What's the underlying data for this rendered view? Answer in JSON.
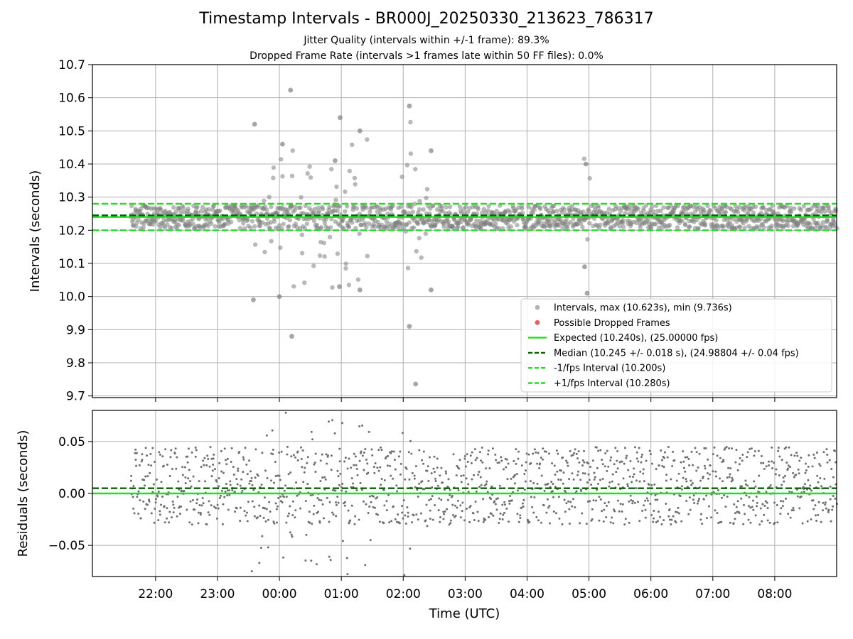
{
  "chart_data": [
    {
      "type": "scatter",
      "title": "Timestamp Intervals - BR000J_20250330_213623_786317",
      "subtitle_lines": [
        "Jitter Quality (intervals within +/-1 frame): 89.3%",
        "Dropped Frame Rate (intervals >1 frames late within 50 FF files): 0.0%"
      ],
      "xlabel": "",
      "ylabel": "Intervals (seconds)",
      "x_axis": "time (UTC), hours since midnight on 30 March; values below 0 are before midnight",
      "xlim": [
        -3.02,
        9.0
      ],
      "ylim": [
        9.695,
        10.7
      ],
      "grid": true,
      "x_tick_labels": [
        "22:00",
        "23:00",
        "00:00",
        "01:00",
        "02:00",
        "03:00",
        "04:00",
        "05:00",
        "06:00",
        "07:00",
        "08:00"
      ],
      "x_tick_values": [
        -2,
        -1,
        0,
        1,
        2,
        3,
        4,
        5,
        6,
        7,
        8
      ],
      "y_ticks": [
        9.7,
        9.8,
        9.9,
        10.0,
        10.1,
        10.2,
        10.3,
        10.4,
        10.5,
        10.6,
        10.7
      ],
      "y_tick_labels": [
        "9.7",
        "9.8",
        "9.9",
        "10.0",
        "10.1",
        "10.2",
        "10.3",
        "10.4",
        "10.5",
        "10.6",
        "10.7"
      ],
      "data_start_hour": -2.4,
      "data_end_hour": 9.0,
      "interval_band": [
        10.2,
        10.28
      ],
      "outlier_windows": [
        [
          -0.5,
          1.5
        ],
        [
          1.95,
          2.5
        ],
        [
          4.9,
          5.05
        ]
      ],
      "series": [
        {
          "name": "Intervals, max (10.623s), min (9.736s)",
          "kind": "points",
          "color": "#808080",
          "notable_points": [
            {
              "x": 0.18,
              "y": 10.623
            },
            {
              "x": 0.98,
              "y": 10.54
            },
            {
              "x": 2.1,
              "y": 10.575
            },
            {
              "x": 0.2,
              "y": 9.88
            },
            {
              "x": 2.1,
              "y": 9.91
            },
            {
              "x": 2.2,
              "y": 9.736
            },
            {
              "x": -0.4,
              "y": 10.52
            },
            {
              "x": 0.05,
              "y": 10.46
            },
            {
              "x": 0.9,
              "y": 10.41
            },
            {
              "x": 1.3,
              "y": 10.5
            },
            {
              "x": 2.45,
              "y": 10.44
            },
            {
              "x": 4.95,
              "y": 10.4
            },
            {
              "x": 4.93,
              "y": 10.09
            },
            {
              "x": 4.97,
              "y": 10.01
            },
            {
              "x": -0.42,
              "y": 9.99
            },
            {
              "x": 0.0,
              "y": 10.0
            },
            {
              "x": 0.97,
              "y": 10.03
            },
            {
              "x": 1.3,
              "y": 10.02
            },
            {
              "x": 2.45,
              "y": 10.02
            }
          ]
        },
        {
          "name": "Possible Dropped Frames",
          "kind": "points",
          "color": "#f05c5c",
          "values": []
        },
        {
          "name": "Expected (10.240s), (25.00000 fps)",
          "kind": "hline",
          "value": 10.24,
          "color": "#1fe01f",
          "style": "solid"
        },
        {
          "name": "Median (10.245 +/- 0.018 s), (24.98804 +/- 0.04 fps)",
          "kind": "hline",
          "value": 10.245,
          "color": "#006400",
          "style": "dashed"
        },
        {
          "name": "-1/fps Interval (10.200s)",
          "kind": "hline",
          "value": 10.2,
          "color": "#1fe01f",
          "style": "dashed"
        },
        {
          "name": "+1/fps Interval (10.280s)",
          "kind": "hline",
          "value": 10.28,
          "color": "#1fe01f",
          "style": "dashed"
        }
      ],
      "legend_location": "lower-right"
    },
    {
      "type": "scatter",
      "title": "",
      "xlabel": "Time (UTC)",
      "ylabel": "Residuals (seconds)",
      "xlim": [
        -3.02,
        9.0
      ],
      "ylim": [
        -0.08,
        0.08
      ],
      "grid": true,
      "x_tick_labels": [
        "22:00",
        "23:00",
        "00:00",
        "01:00",
        "02:00",
        "03:00",
        "04:00",
        "05:00",
        "06:00",
        "07:00",
        "08:00"
      ],
      "x_tick_values": [
        -2,
        -1,
        0,
        1,
        2,
        3,
        4,
        5,
        6,
        7,
        8
      ],
      "y_ticks": [
        -0.05,
        0.0,
        0.05
      ],
      "y_tick_labels": [
        "−0.05",
        "0.00",
        "0.05"
      ],
      "residual_band": [
        -0.03,
        0.045
      ],
      "series": [
        {
          "name": "Residuals",
          "kind": "points",
          "color": "#6e6e6e"
        },
        {
          "name": "Expected",
          "kind": "hline",
          "value": 0.0,
          "color": "#1fe01f",
          "style": "solid"
        },
        {
          "name": "Median",
          "kind": "hline",
          "value": 0.005,
          "color": "#006400",
          "style": "dashed"
        }
      ]
    }
  ],
  "colors": {
    "grid": "#b0b0b0",
    "point_gray": "#808080",
    "dropped_red": "#f05c5c",
    "expected_green": "#1fe01f",
    "median_darkgreen": "#006400"
  }
}
